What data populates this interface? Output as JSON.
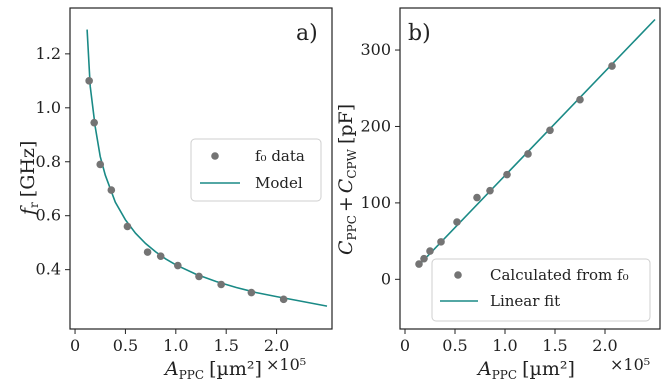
{
  "colors": {
    "marker": "#747474",
    "line": "#1a8a86",
    "axis": "#222222"
  },
  "chart_data": [
    {
      "type": "scatter",
      "panel_label": "a)",
      "xlabel_main": "A",
      "xlabel_sub": "PPC",
      "xlabel_unit": "[µm²]",
      "x_multiplier": "×10⁵",
      "ylabel_main": "f",
      "ylabel_sub": "r",
      "ylabel_unit": "[GHz]",
      "xlim": [
        -0.05,
        2.55
      ],
      "ylim": [
        0.18,
        1.37
      ],
      "xticks": [
        0,
        0.5,
        1,
        1.5,
        2
      ],
      "xtick_labels": [
        "0",
        "0.5",
        "1.0",
        "1.5",
        "2.0"
      ],
      "yticks": [
        0.4,
        0.6,
        0.8,
        1.0,
        1.2
      ],
      "ytick_labels": [
        "0.4",
        "0.6",
        "0.8",
        "1.0",
        "1.2"
      ],
      "legend_position": "center-right",
      "series": [
        {
          "name": "f₀ data",
          "kind": "points",
          "x": [
            0.14,
            0.19,
            0.25,
            0.36,
            0.52,
            0.72,
            0.85,
            1.02,
            1.23,
            1.45,
            1.75,
            2.07
          ],
          "y": [
            1.1,
            0.945,
            0.79,
            0.695,
            0.56,
            0.465,
            0.45,
            0.415,
            0.375,
            0.345,
            0.315,
            0.29
          ]
        },
        {
          "name": "Model",
          "kind": "line",
          "x": [
            0.12,
            0.15,
            0.2,
            0.25,
            0.3,
            0.4,
            0.5,
            0.6,
            0.7,
            0.8,
            0.9,
            1.0,
            1.2,
            1.4,
            1.6,
            1.8,
            2.0,
            2.2,
            2.5
          ],
          "y": [
            1.29,
            1.08,
            0.93,
            0.82,
            0.75,
            0.65,
            0.585,
            0.535,
            0.497,
            0.466,
            0.44,
            0.418,
            0.383,
            0.356,
            0.334,
            0.315,
            0.3,
            0.286,
            0.265
          ]
        }
      ]
    },
    {
      "type": "scatter",
      "panel_label": "b)",
      "xlabel_main": "A",
      "xlabel_sub": "PPC",
      "xlabel_unit": "[µm²]",
      "x_multiplier": "×10⁵",
      "ylabel_c1": "C",
      "ylabel_sub1": "PPC",
      "ylabel_plus": "+",
      "ylabel_c2": "C",
      "ylabel_sub2": "CPW",
      "ylabel_unit": "[pF]",
      "xlim": [
        -0.05,
        2.55
      ],
      "ylim": [
        -65,
        355
      ],
      "xticks": [
        0,
        0.5,
        1,
        1.5,
        2
      ],
      "xtick_labels": [
        "0",
        "0.5",
        "1.0",
        "1.5",
        "2.0"
      ],
      "yticks": [
        0,
        100,
        200,
        300
      ],
      "ytick_labels": [
        "0",
        "100",
        "200",
        "300"
      ],
      "legend_position": "bottom-right",
      "series": [
        {
          "name": "Calculated from f₀",
          "kind": "points",
          "x": [
            0.14,
            0.19,
            0.25,
            0.36,
            0.52,
            0.72,
            0.85,
            1.02,
            1.23,
            1.45,
            1.75,
            2.07
          ],
          "y": [
            20,
            27,
            37,
            49,
            75,
            107,
            116,
            137,
            164,
            195,
            235,
            279
          ]
        },
        {
          "name": "Linear fit",
          "kind": "line",
          "x": [
            0.12,
            2.5
          ],
          "y": [
            16,
            340
          ]
        }
      ]
    }
  ]
}
